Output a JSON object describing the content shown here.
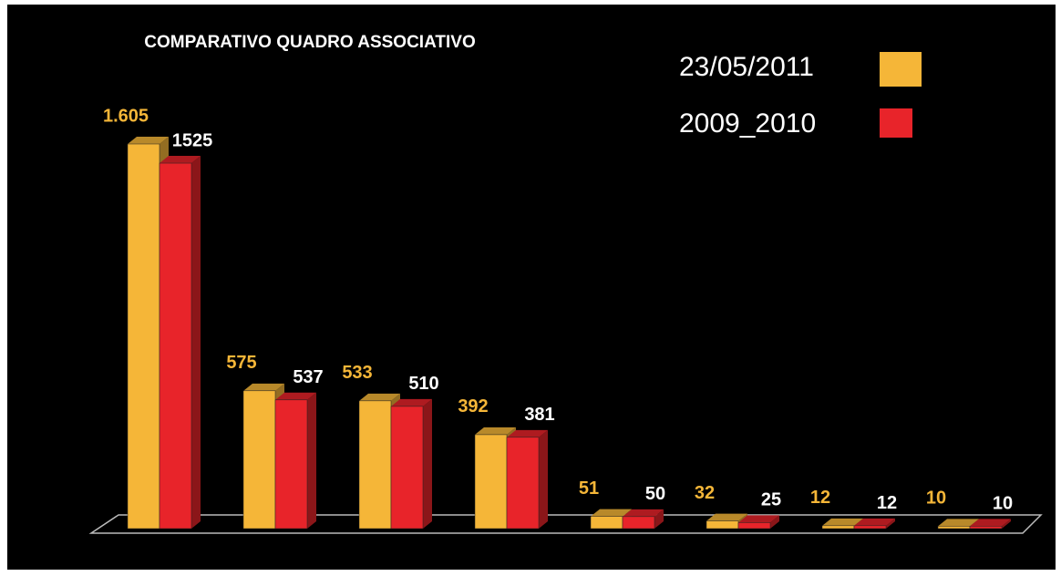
{
  "chart_data": {
    "type": "bar3d",
    "title": "COMPARATIVO QUADRO ASSOCIATIVO",
    "categories": [
      null,
      null,
      null,
      null,
      null,
      null,
      null,
      null
    ],
    "series": [
      {
        "name": "23/05/2011",
        "color": "#f5b638",
        "label_color": "#f5b638",
        "values": [
          1605,
          575,
          533,
          392,
          51,
          32,
          12,
          10
        ],
        "value_labels": [
          "1.605",
          "575",
          "533",
          "392",
          "51",
          "32",
          "12",
          "10"
        ]
      },
      {
        "name": "2009_2010",
        "color": "#e8242a",
        "label_color": "#ffffff",
        "values": [
          1525,
          537,
          510,
          381,
          50,
          25,
          12,
          10
        ]
      }
    ]
  }
}
